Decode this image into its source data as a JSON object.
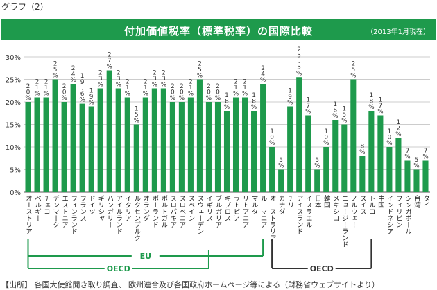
{
  "page": {
    "label": "グラフ（2）",
    "source": "【出所】 各国大使館聞き取り調査、 欧州連合及び各国政府ホームページ等による（財務省ウェブサイトより）"
  },
  "chart_data": {
    "type": "bar",
    "title": "付加価値税率（標準税率）の国際比較",
    "note": "（2013年1月現在）",
    "ylim": [
      0,
      30
    ],
    "yticks": [
      "0%",
      "5%",
      "10%",
      "15%",
      "20%",
      "25%",
      "30%"
    ],
    "grid": true,
    "bar_color": "#1e9a4c",
    "categories": [
      "オーストリア",
      "ベルギー",
      "チェコ",
      "デンマーク",
      "エストニア",
      "フィンランド",
      "フランス",
      "ドイツ",
      "ギリシャ",
      "ハンガリー",
      "アイルランド",
      "イタリア",
      "ルクセンブルク",
      "オランダ",
      "ポーランド",
      "ポルトガル",
      "スロバキア",
      "スロベニア",
      "スペイン",
      "スウェーデン",
      "イギリス",
      "ブルガリア",
      "キプロス",
      "ラトビア",
      "リトアニア",
      "マルタ",
      "ルーマニア",
      "オーストラリア",
      "カナダ",
      "チリ",
      "アイスランド",
      "イスラエル",
      "日本",
      "韓国",
      "メキシコ",
      "ニュージーランド",
      "ノルウェー",
      "スイス",
      "トルコ",
      "中国",
      "インドネシア",
      "フィリピン",
      "シンガポール",
      "台湾",
      "タイ"
    ],
    "values": [
      20,
      21,
      21,
      25,
      20,
      24,
      19.6,
      19,
      23,
      27,
      23,
      21,
      15,
      21,
      23,
      23,
      20,
      20,
      21,
      25,
      20,
      20,
      18,
      21,
      21,
      18,
      24,
      10,
      5,
      19,
      25.5,
      17,
      5,
      10,
      16,
      15,
      25,
      8,
      18,
      17,
      10,
      12,
      7,
      5,
      7
    ],
    "labels": [
      "20%",
      "21%",
      "21%",
      "25%",
      "20%",
      "24%",
      "19.6%",
      "19%",
      "23%",
      "27%",
      "23%",
      "21%",
      "15%",
      "21%",
      "23%",
      "23%",
      "20%",
      "20%",
      "21%",
      "25%",
      "20%",
      "20%",
      "18%",
      "21%",
      "21%",
      "18%",
      "24%",
      "10%",
      "5%",
      "19%",
      "25.5%",
      "17%",
      "5%",
      "10%",
      "16%",
      "15%",
      "25%",
      "8%",
      "18%",
      "17%",
      "10%",
      "12%",
      "7%",
      "5%",
      "7%"
    ],
    "groups": [
      {
        "name": "EU",
        "from": 0,
        "to": 26,
        "color": "#1e9a4c"
      },
      {
        "name": "OECD",
        "from": 0,
        "to": 20,
        "color": "#1e9a4c"
      },
      {
        "name": "OECD",
        "from": 27,
        "to": 38,
        "color": "#333333"
      }
    ]
  }
}
